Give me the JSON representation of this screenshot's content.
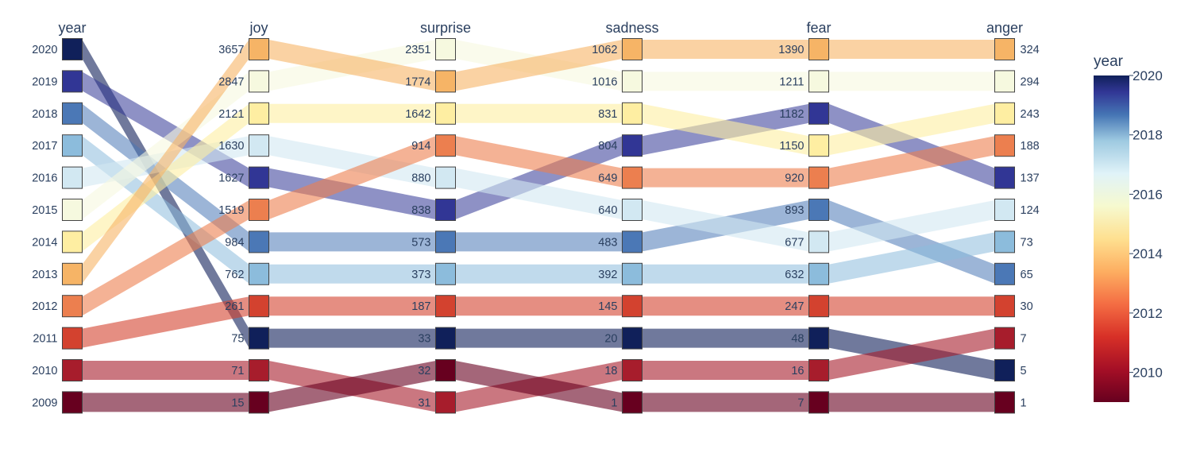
{
  "chart_data": {
    "type": "parallel_categories",
    "dimensions": [
      {
        "name": "year",
        "categories": [
          "2020",
          "2019",
          "2018",
          "2017",
          "2016",
          "2015",
          "2014",
          "2013",
          "2012",
          "2011",
          "2010",
          "2009"
        ]
      },
      {
        "name": "joy",
        "categories": [
          "3657",
          "2847",
          "2121",
          "1630",
          "1627",
          "1519",
          "984",
          "762",
          "261",
          "75",
          "71",
          "15"
        ]
      },
      {
        "name": "surprise",
        "categories": [
          "2351",
          "1774",
          "1642",
          "914",
          "880",
          "838",
          "573",
          "373",
          "187",
          "33",
          "32",
          "31"
        ]
      },
      {
        "name": "sadness",
        "categories": [
          "1062",
          "1016",
          "831",
          "804",
          "649",
          "640",
          "483",
          "392",
          "145",
          "20",
          "18",
          "1"
        ]
      },
      {
        "name": "fear",
        "categories": [
          "1390",
          "1211",
          "1182",
          "1150",
          "920",
          "893",
          "677",
          "632",
          "247",
          "48",
          "16",
          "7"
        ]
      },
      {
        "name": "anger",
        "categories": [
          "324",
          "294",
          "243",
          "188",
          "137",
          "124",
          "73",
          "65",
          "30",
          "7",
          "5",
          "1"
        ]
      }
    ],
    "records": [
      {
        "year": 2020,
        "joy": 75,
        "surprise": 33,
        "sadness": 20,
        "fear": 48,
        "anger": 5
      },
      {
        "year": 2019,
        "joy": 1627,
        "surprise": 838,
        "sadness": 804,
        "fear": 1182,
        "anger": 137
      },
      {
        "year": 2018,
        "joy": 984,
        "surprise": 573,
        "sadness": 483,
        "fear": 893,
        "anger": 65
      },
      {
        "year": 2017,
        "joy": 762,
        "surprise": 373,
        "sadness": 392,
        "fear": 632,
        "anger": 73
      },
      {
        "year": 2016,
        "joy": 1630,
        "surprise": 880,
        "sadness": 640,
        "fear": 677,
        "anger": 124
      },
      {
        "year": 2015,
        "joy": 2847,
        "surprise": 2351,
        "sadness": 1016,
        "fear": 1211,
        "anger": 294
      },
      {
        "year": 2014,
        "joy": 2121,
        "surprise": 1642,
        "sadness": 831,
        "fear": 1150,
        "anger": 243
      },
      {
        "year": 2013,
        "joy": 3657,
        "surprise": 1774,
        "sadness": 1062,
        "fear": 1390,
        "anger": 324
      },
      {
        "year": 2012,
        "joy": 1519,
        "surprise": 914,
        "sadness": 649,
        "fear": 920,
        "anger": 188
      },
      {
        "year": 2011,
        "joy": 261,
        "surprise": 187,
        "sadness": 145,
        "fear": 247,
        "anger": 30
      },
      {
        "year": 2010,
        "joy": 71,
        "surprise": 31,
        "sadness": 18,
        "fear": 16,
        "anger": 7
      },
      {
        "year": 2009,
        "joy": 15,
        "surprise": 32,
        "sadness": 1,
        "fear": 7,
        "anger": 1
      }
    ],
    "color_by": "year",
    "colorscale": "RdYlBu",
    "colorbar": {
      "title": "year",
      "range": [
        2009,
        2020
      ],
      "ticks": [
        "2020",
        "2018",
        "2016",
        "2014",
        "2012",
        "2010"
      ]
    }
  }
}
